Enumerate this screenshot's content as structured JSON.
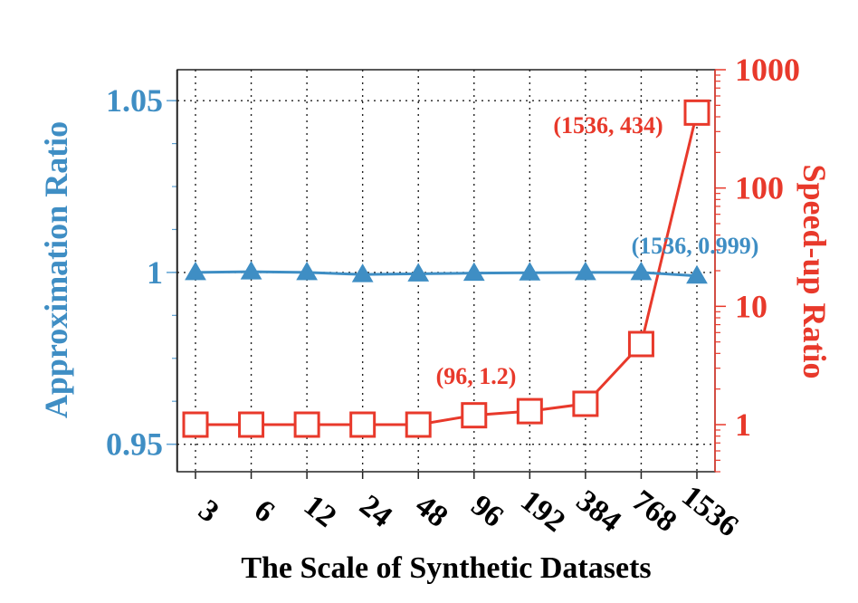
{
  "chart_data": {
    "type": "line",
    "xlabel": "The Scale of Synthetic Datasets",
    "categories": [
      "3",
      "6",
      "12",
      "24",
      "48",
      "96",
      "192",
      "384",
      "768",
      "1536"
    ],
    "ylabel_left": "Approximation Ratio",
    "ylabel_right": "Speed-up Ratio",
    "ylim_left": [
      0.942,
      1.059
    ],
    "yticks_left": [
      "0.95",
      "1",
      "1.05"
    ],
    "ylim_right_log": [
      0.4,
      1000
    ],
    "yticks_right": [
      "1",
      "10",
      "100",
      "1000"
    ],
    "grid": true,
    "series": [
      {
        "name": "Approximation Ratio",
        "axis": "left",
        "marker": "triangle",
        "color": "#3f8ec4",
        "values": [
          1.0,
          1.0002,
          1.0,
          0.9994,
          0.9996,
          0.9998,
          0.9999,
          1.0,
          1.0,
          0.999
        ]
      },
      {
        "name": "Speed-up Ratio",
        "axis": "right",
        "marker": "square",
        "color": "#e8392b",
        "values": [
          1.0,
          1.0,
          1.0,
          1.0,
          1.0,
          1.2,
          1.3,
          1.5,
          4.8,
          434
        ]
      }
    ],
    "annotations": [
      {
        "text": "(1536, 434)",
        "color": "#e8392b"
      },
      {
        "text": "(1536, 0.999)",
        "color": "#3f8ec4"
      },
      {
        "text": "(96, 1.2)",
        "color": "#e8392b"
      }
    ]
  }
}
